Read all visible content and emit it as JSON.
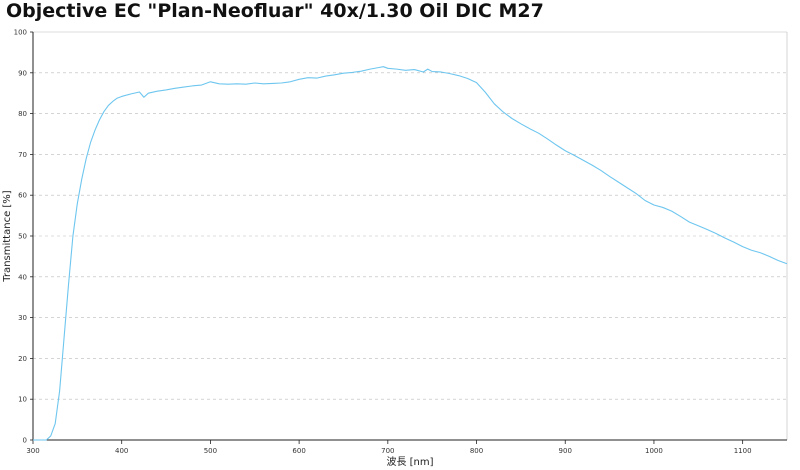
{
  "colors": {
    "series_line": "#6ec6ef",
    "grid": "#bbbbbb",
    "axis": "#222222",
    "text": "#111111"
  },
  "chart_data": {
    "type": "line",
    "title": "Objective EC \"Plan-Neofluar\" 40x/1.30 Oil DIC M27",
    "xlabel": "波長 [nm]",
    "ylabel": "Transmittance [%]",
    "xlim": [
      300,
      1150
    ],
    "ylim": [
      0,
      100
    ],
    "x_ticks": [
      300,
      400,
      500,
      600,
      700,
      800,
      900,
      1000,
      1100
    ],
    "y_ticks": [
      0,
      10,
      20,
      30,
      40,
      50,
      60,
      70,
      80,
      90,
      100
    ],
    "grid": "horizontal dashed",
    "series": [
      {
        "x": [
          300,
          315,
          320,
          325,
          330,
          335,
          340,
          345,
          350,
          355,
          360,
          365,
          370,
          375,
          380,
          385,
          390,
          395,
          400,
          410,
          420,
          425,
          430,
          440,
          450,
          460,
          470,
          480,
          490,
          500,
          510,
          520,
          530,
          540,
          550,
          560,
          570,
          580,
          590,
          600,
          610,
          620,
          630,
          640,
          650,
          660,
          670,
          680,
          690,
          695,
          700,
          710,
          720,
          730,
          740,
          745,
          750,
          760,
          770,
          780,
          790,
          800,
          810,
          820,
          830,
          840,
          850,
          860,
          870,
          880,
          890,
          900,
          910,
          920,
          930,
          940,
          950,
          960,
          970,
          980,
          990,
          1000,
          1010,
          1020,
          1030,
          1040,
          1050,
          1060,
          1070,
          1080,
          1090,
          1100,
          1110,
          1120,
          1130,
          1140,
          1150
        ],
        "values": [
          0,
          0,
          1,
          4,
          12,
          25,
          38,
          50,
          58,
          64,
          69,
          73,
          76,
          78.5,
          80.5,
          82,
          83,
          83.8,
          84.2,
          84.8,
          85.3,
          84,
          85,
          85.5,
          85.8,
          86.2,
          86.5,
          86.8,
          87,
          87.8,
          87.3,
          87.2,
          87.3,
          87.2,
          87.5,
          87.3,
          87.4,
          87.5,
          87.8,
          88.4,
          88.8,
          88.7,
          89.2,
          89.5,
          89.9,
          90.1,
          90.4,
          90.9,
          91.3,
          91.5,
          91.1,
          90.9,
          90.6,
          90.8,
          90.2,
          90.9,
          90.3,
          90.2,
          89.8,
          89.3,
          88.6,
          87.6,
          85.2,
          82.4,
          80.4,
          78.8,
          77.5,
          76.3,
          75.2,
          73.8,
          72.3,
          70.9,
          69.8,
          68.6,
          67.4,
          66.1,
          64.6,
          63.2,
          61.8,
          60.4,
          58.7,
          57.6,
          57,
          56.1,
          54.8,
          53.4,
          52.5,
          51.6,
          50.6,
          49.5,
          48.5,
          47.4,
          46.5,
          45.9,
          45,
          44,
          43.2
        ]
      }
    ]
  }
}
